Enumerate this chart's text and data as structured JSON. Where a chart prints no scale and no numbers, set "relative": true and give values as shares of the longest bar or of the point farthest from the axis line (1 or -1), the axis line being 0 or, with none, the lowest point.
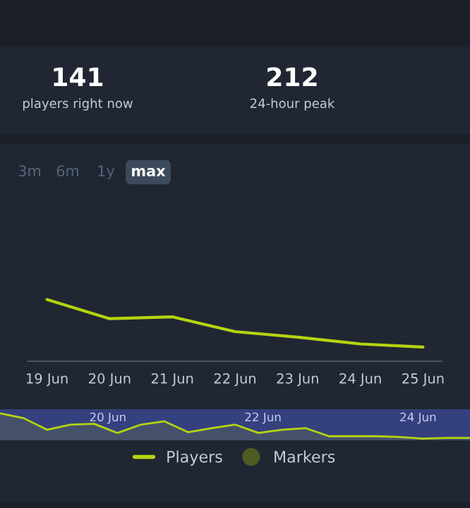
{
  "chart_data": [
    {
      "type": "line",
      "relative": true,
      "legend": "bottom",
      "marker": "none",
      "annotations": [
        "141",
        "players right now",
        "212",
        "24-hour peak",
        "3m",
        "6m",
        "1y",
        "max"
      ],
      "categories": [
        "19 Jun",
        "20 Jun",
        "21 Jun",
        "22 Jun",
        "23 Jun",
        "24 Jun",
        "25 Jun"
      ],
      "series": [
        {
          "name": "Players",
          "type": "line",
          "color": "#b5d40f",
          "values": [
            1,
            0.69,
            0.72,
            0.48,
            0.39,
            0.28,
            0.23
          ]
        },
        {
          "name": "Markers",
          "type": "scatter",
          "color": "#4f5d22",
          "values": [
            null,
            null,
            null,
            null,
            null,
            null,
            null
          ]
        }
      ]
    },
    {
      "type": "area",
      "relative": true,
      "annotations": [
        "20 Jun",
        "22 Jun",
        "24 Jun"
      ],
      "categories": [
        null,
        null,
        null,
        null,
        null,
        null,
        null,
        null,
        null,
        null,
        null,
        null,
        null,
        null,
        null,
        null,
        null,
        null,
        null,
        null,
        null
      ],
      "series": [
        {
          "color": "#b5d40f",
          "values": [
            1,
            0.82,
            0.39,
            0.58,
            0.61,
            0.27,
            0.58,
            0.7,
            0.3,
            0.45,
            0.58,
            0.27,
            0.39,
            0.45,
            0.15,
            0.15,
            0.15,
            0.12,
            0.06,
            0.09,
            0.09
          ]
        }
      ]
    }
  ]
}
